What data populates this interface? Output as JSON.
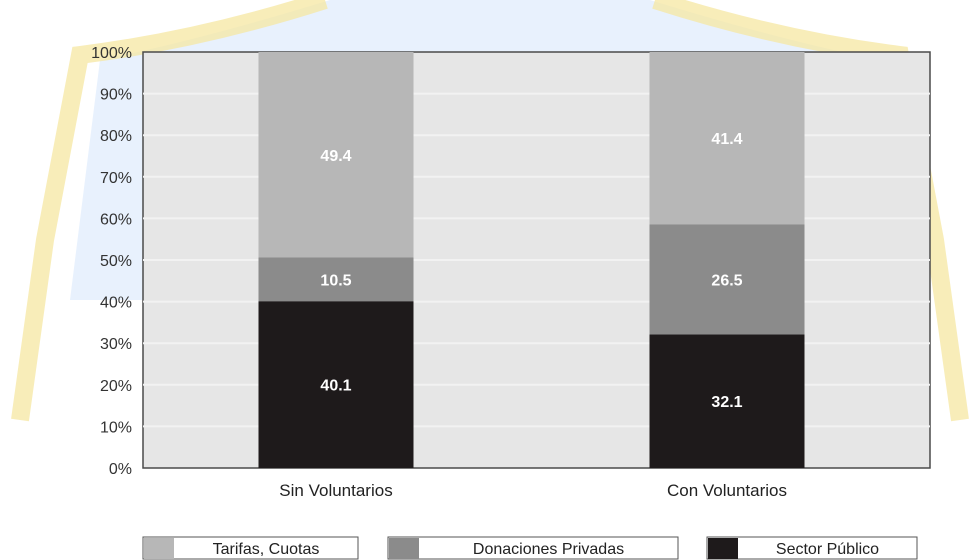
{
  "chart_data": {
    "type": "bar",
    "stacked": true,
    "categories": [
      "Sin Voluntarios",
      "Con Voluntarios"
    ],
    "series": [
      {
        "name": "Sector Público",
        "values": [
          40.1,
          32.1
        ],
        "labels": [
          "40.1",
          "32.1"
        ],
        "color": "#1e1a1b"
      },
      {
        "name": "Donaciones Privadas",
        "values": [
          10.5,
          26.5
        ],
        "labels": [
          "10.5",
          "26.5"
        ],
        "color": "#8b8b8b"
      },
      {
        "name": "Tarifas, Cuotas",
        "values": [
          49.4,
          41.4
        ],
        "labels": [
          "49.4",
          "41.4"
        ],
        "color": "#b7b7b7"
      }
    ],
    "legend_order": [
      "Tarifas, Cuotas",
      "Donaciones Privadas",
      "Sector Público"
    ],
    "legend_position": "bottom",
    "ylim": [
      0,
      100
    ],
    "yticks": [
      0,
      10,
      20,
      30,
      40,
      50,
      60,
      70,
      80,
      90,
      100
    ],
    "ytick_labels": [
      "0%",
      "10%",
      "20%",
      "30%",
      "40%",
      "50%",
      "60%",
      "70%",
      "80%",
      "90%",
      "100%"
    ],
    "grid": true,
    "plot_background": "#e6e6e6",
    "grid_color": "#f2f2f2"
  }
}
